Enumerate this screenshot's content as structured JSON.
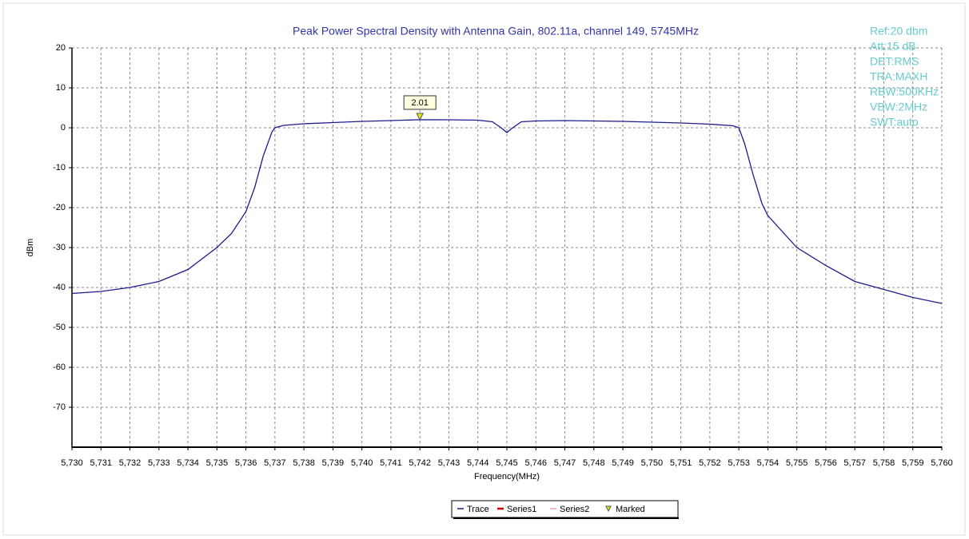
{
  "chart_data": {
    "type": "line",
    "title": "Peak Power Spectral Density with Antenna Gain, 802.11a, channel 149, 5745MHz",
    "x_label": "Frequency(MHz)",
    "y_label": "dBm",
    "xlim": [
      5730,
      5760
    ],
    "ylim": [
      -80,
      20
    ],
    "xticks": [
      {
        "value": 5730,
        "label": "5,730"
      },
      {
        "value": 5731,
        "label": "5,731"
      },
      {
        "value": 5732,
        "label": "5,732"
      },
      {
        "value": 5733,
        "label": "5,733"
      },
      {
        "value": 5734,
        "label": "5,734"
      },
      {
        "value": 5735,
        "label": "5,735"
      },
      {
        "value": 5736,
        "label": "5,736"
      },
      {
        "value": 5737,
        "label": "5,737"
      },
      {
        "value": 5738,
        "label": "5,738"
      },
      {
        "value": 5739,
        "label": "5,739"
      },
      {
        "value": 5740,
        "label": "5,740"
      },
      {
        "value": 5741,
        "label": "5,741"
      },
      {
        "value": 5742,
        "label": "5,742"
      },
      {
        "value": 5743,
        "label": "5,743"
      },
      {
        "value": 5744,
        "label": "5,744"
      },
      {
        "value": 5745,
        "label": "5,745"
      },
      {
        "value": 5746,
        "label": "5,746"
      },
      {
        "value": 5747,
        "label": "5,747"
      },
      {
        "value": 5748,
        "label": "5,748"
      },
      {
        "value": 5749,
        "label": "5,749"
      },
      {
        "value": 5750,
        "label": "5,750"
      },
      {
        "value": 5751,
        "label": "5,751"
      },
      {
        "value": 5752,
        "label": "5,752"
      },
      {
        "value": 5753,
        "label": "5,753"
      },
      {
        "value": 5754,
        "label": "5,754"
      },
      {
        "value": 5755,
        "label": "5,755"
      },
      {
        "value": 5756,
        "label": "5,756"
      },
      {
        "value": 5757,
        "label": "5,757"
      },
      {
        "value": 5758,
        "label": "5,758"
      },
      {
        "value": 5759,
        "label": "5,759"
      },
      {
        "value": 5760,
        "label": "5,760"
      }
    ],
    "yticks": [
      20,
      10,
      0,
      -10,
      -20,
      -30,
      -40,
      -50,
      -60,
      -70
    ],
    "grid": true,
    "series": [
      {
        "name": "Trace",
        "color": "#1c1c8c",
        "x": [
          5730,
          5731,
          5732,
          5733,
          5734,
          5735,
          5735.5,
          5736,
          5736.3,
          5736.6,
          5736.9,
          5737,
          5737.3,
          5738,
          5739,
          5740,
          5741,
          5742,
          5743,
          5744,
          5744.5,
          5744.8,
          5745,
          5745.2,
          5745.5,
          5746,
          5747,
          5748,
          5749,
          5750,
          5751,
          5752,
          5752.8,
          5753,
          5753.2,
          5753.5,
          5753.8,
          5754,
          5754.5,
          5755,
          5756,
          5757,
          5758,
          5759,
          5760
        ],
        "values": [
          -41.5,
          -41,
          -40,
          -38.5,
          -35.5,
          -30,
          -26.5,
          -21,
          -15,
          -7,
          -1,
          0,
          0.6,
          1,
          1.3,
          1.6,
          1.8,
          2.01,
          2,
          1.9,
          1.5,
          0,
          -1.2,
          0,
          1.5,
          1.7,
          1.8,
          1.7,
          1.6,
          1.4,
          1.2,
          0.9,
          0.5,
          0,
          -4,
          -12,
          -19,
          -22,
          -26,
          -30,
          -34.5,
          -38.5,
          -40.5,
          -42.5,
          -44
        ]
      }
    ],
    "marker": {
      "x": 5742,
      "value": 2.01
    },
    "legend": [
      {
        "name": "Trace",
        "color": "#1c1c8c"
      },
      {
        "name": "Series1",
        "color": "#cc0000"
      },
      {
        "name": "Series2",
        "color": "#f4a0a0"
      },
      {
        "name": "Marked",
        "color": "#e8e800"
      }
    ],
    "info": [
      "Ref:20 dbm",
      "Att:15 dB",
      "DET:RMS",
      "TRA:MAXH",
      "RBW:500KHz",
      "VBW:2MHz",
      "SWT:auto"
    ]
  }
}
